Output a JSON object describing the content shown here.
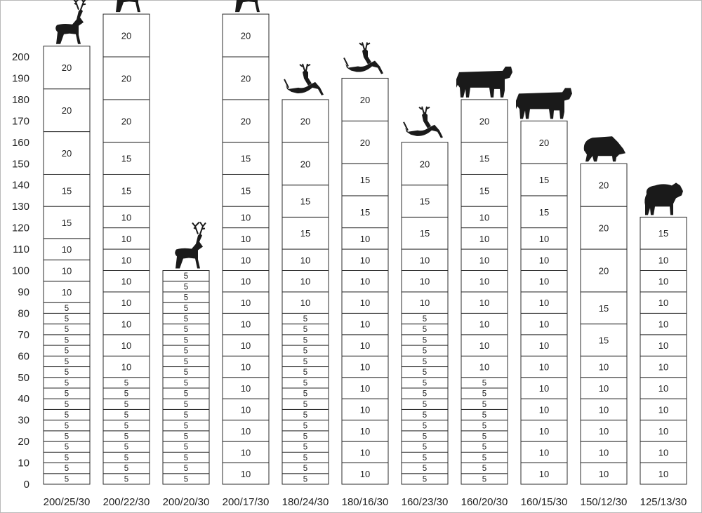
{
  "chart_data": {
    "type": "bar",
    "stacked": true,
    "ylim": [
      0,
      200
    ],
    "yticks": [
      0,
      10,
      20,
      30,
      40,
      50,
      60,
      70,
      80,
      90,
      100,
      110,
      120,
      130,
      140,
      150,
      160,
      170,
      180,
      190,
      200
    ],
    "grid": false,
    "columns": [
      {
        "label": "200/25/30",
        "animal": "stag-icon",
        "segments": [
          5,
          5,
          5,
          5,
          5,
          5,
          5,
          5,
          5,
          5,
          5,
          5,
          5,
          5,
          5,
          5,
          5,
          10,
          10,
          10,
          15,
          15,
          20,
          20,
          20
        ]
      },
      {
        "label": "200/22/30",
        "animal": "stag-icon",
        "segments": [
          5,
          5,
          5,
          5,
          5,
          5,
          5,
          5,
          5,
          5,
          10,
          10,
          10,
          10,
          10,
          10,
          10,
          10,
          15,
          15,
          20,
          20,
          20
        ]
      },
      {
        "label": "200/20/30",
        "animal": "stag-icon",
        "segments": [
          5,
          5,
          5,
          5,
          5,
          5,
          5,
          5,
          5,
          5,
          5,
          5,
          5,
          5,
          5,
          5,
          5,
          5,
          5,
          5
        ]
      },
      {
        "label": "200/17/30",
        "animal": "stag-icon",
        "segments": [
          10,
          10,
          10,
          10,
          10,
          10,
          10,
          10,
          10,
          10,
          10,
          10,
          10,
          15,
          15,
          20,
          20,
          20
        ]
      },
      {
        "label": "180/24/30",
        "animal": "leaping-deer-icon",
        "segments": [
          5,
          5,
          5,
          5,
          5,
          5,
          5,
          5,
          5,
          5,
          5,
          5,
          5,
          5,
          5,
          5,
          10,
          10,
          10,
          15,
          15,
          20,
          20
        ]
      },
      {
        "label": "180/16/30",
        "animal": "leaping-deer-icon",
        "segments": [
          10,
          10,
          10,
          10,
          10,
          10,
          10,
          10,
          10,
          10,
          10,
          10,
          15,
          15,
          20,
          20
        ]
      },
      {
        "label": "160/23/30",
        "animal": "leaping-deer-icon",
        "segments": [
          5,
          5,
          5,
          5,
          5,
          5,
          5,
          5,
          5,
          5,
          5,
          5,
          5,
          5,
          5,
          5,
          10,
          10,
          10,
          15,
          15,
          20
        ]
      },
      {
        "label": "160/20/30",
        "animal": "cattle-icon",
        "segments": [
          5,
          5,
          5,
          5,
          5,
          5,
          5,
          5,
          5,
          5,
          10,
          10,
          10,
          10,
          10,
          10,
          10,
          10,
          15,
          15,
          20
        ]
      },
      {
        "label": "160/15/30",
        "animal": "cattle-icon",
        "segments": [
          10,
          10,
          10,
          10,
          10,
          10,
          10,
          10,
          10,
          10,
          10,
          10,
          15,
          15,
          20
        ]
      },
      {
        "label": "150/12/30",
        "animal": "boar-icon",
        "segments": [
          10,
          10,
          10,
          10,
          10,
          10,
          15,
          15,
          20,
          20,
          20
        ]
      },
      {
        "label": "125/13/30",
        "animal": "sheep-icon",
        "segments": [
          10,
          10,
          10,
          10,
          10,
          10,
          10,
          10,
          10,
          10,
          10,
          15
        ]
      }
    ]
  }
}
